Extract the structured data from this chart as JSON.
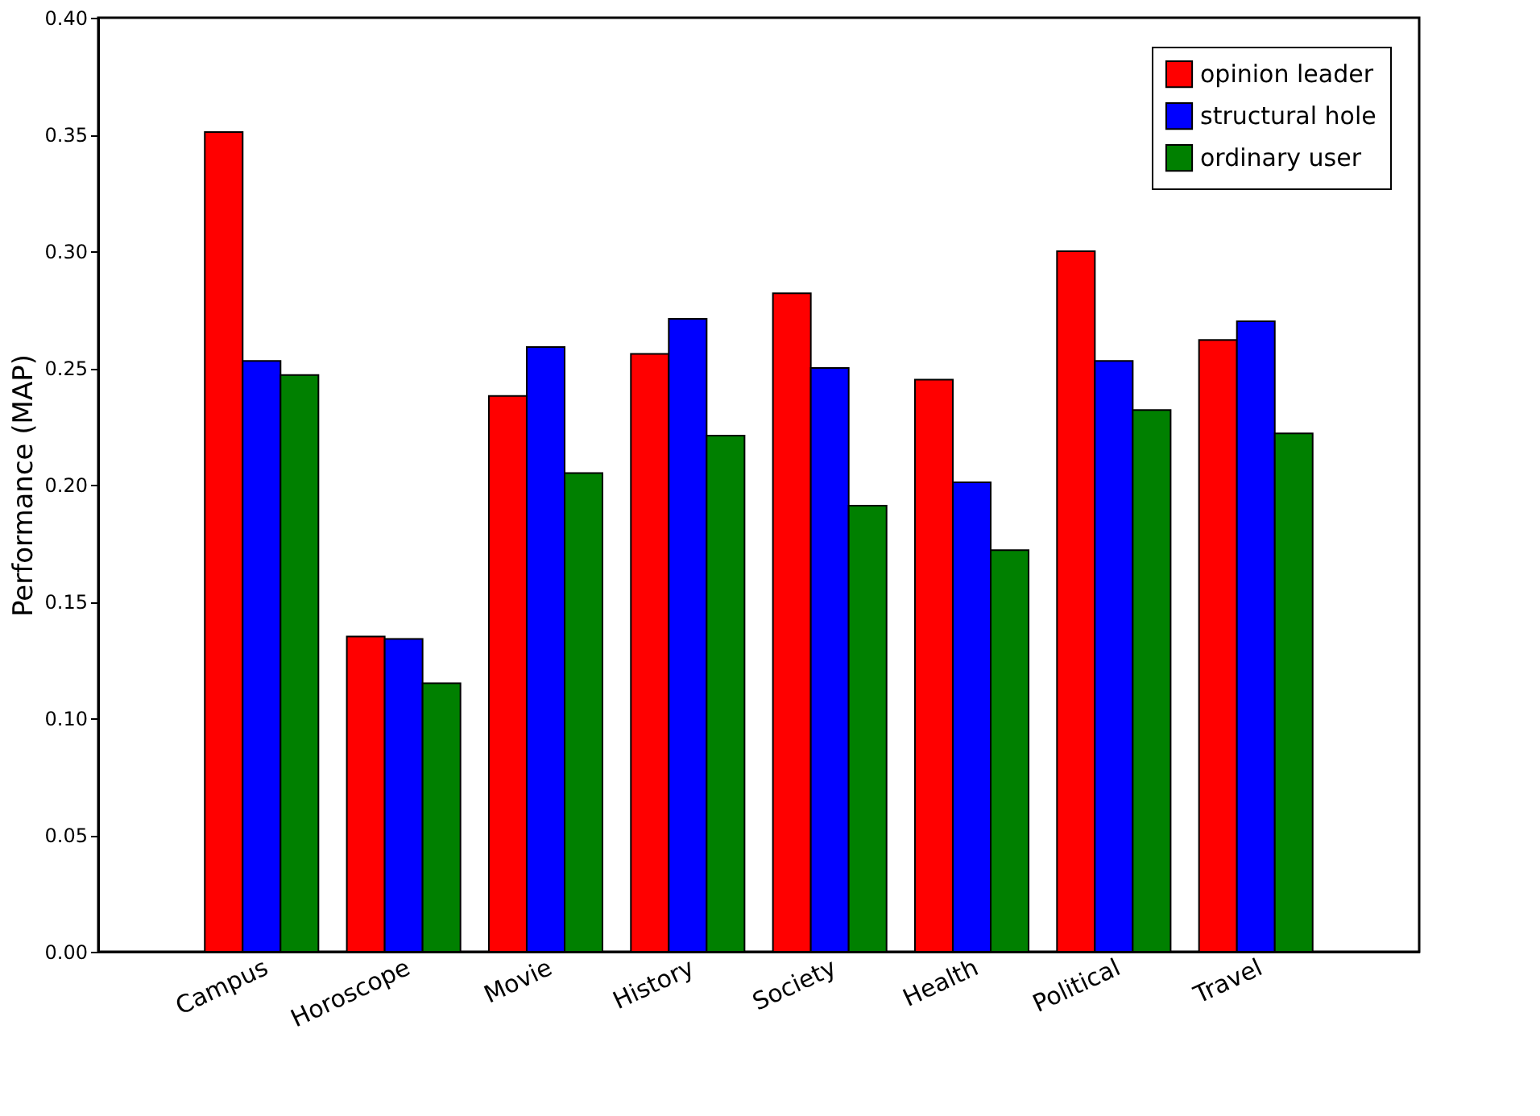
{
  "chart_data": {
    "type": "bar",
    "ylabel": "Performance (MAP)",
    "categories": [
      "Campus",
      "Horoscope",
      "Movie",
      "History",
      "Society",
      "Health",
      "Political",
      "Travel"
    ],
    "series": [
      {
        "name": "opinion leader",
        "color": "#ff0000",
        "values": [
          0.351,
          0.135,
          0.238,
          0.256,
          0.282,
          0.245,
          0.3,
          0.262
        ]
      },
      {
        "name": "structural hole",
        "color": "#0000ff",
        "values": [
          0.253,
          0.134,
          0.259,
          0.271,
          0.25,
          0.201,
          0.253,
          0.27
        ]
      },
      {
        "name": "ordinary user",
        "color": "#008000",
        "values": [
          0.247,
          0.115,
          0.205,
          0.221,
          0.191,
          0.172,
          0.232,
          0.222
        ]
      }
    ],
    "ylim": [
      0,
      0.4
    ],
    "yticks": [
      {
        "value": 0,
        "label": "0.00"
      },
      0.05,
      {
        "value": 0.1,
        "label": "0.10"
      },
      0.15,
      {
        "value": 0.2,
        "label": "0.20"
      },
      0.25,
      {
        "value": 0.3,
        "label": "0.30"
      },
      0.35,
      {
        "value": 0.4,
        "label": "0.40"
      }
    ],
    "legend": "top right",
    "grid": false
  }
}
